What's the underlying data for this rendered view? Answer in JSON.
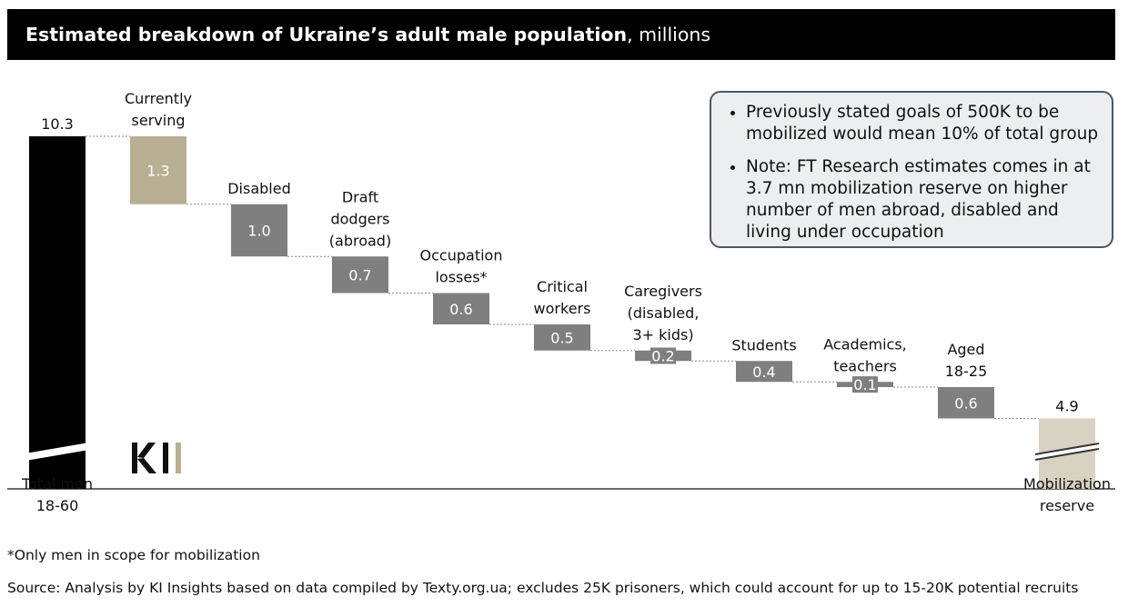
{
  "title": {
    "bold": "Estimated breakdown of Ukraine’s adult male population",
    "unit": ", millions"
  },
  "notes": [
    "Previously stated goals of 500K to be mobilized would mean 10% of total group",
    "Note: FT Research estimates comes in at 3.7 mn mobilization reserve on higher number of men abroad, disabled and living under occupation"
  ],
  "footnote": "*Only men in scope for mobilization",
  "source": "Source: Analysis by KI Insights based on data compiled by Texty.org.ua; excludes 25K prisoners, which could account for up to 15-20K potential recruits",
  "logo_text": "KI",
  "colors": {
    "total": "#000000",
    "serving": "#b8af94",
    "decrease": "#7f7f7f",
    "reserve": "#d8d2c2",
    "connector": "#888888"
  },
  "chart_data": {
    "type": "bar",
    "subtype": "waterfall",
    "title": "Estimated breakdown of Ukraine’s adult male population, millions",
    "unit": "millions",
    "total": {
      "label": [
        "Total men",
        "18-60"
      ],
      "value": 10.3,
      "value_label": "10.3",
      "axis_break": true
    },
    "steps": [
      {
        "label": [
          "Currently",
          "serving"
        ],
        "value": 1.3,
        "value_label": "1.3",
        "color": "#b8af94"
      },
      {
        "label": [
          "Disabled"
        ],
        "value": 1.0,
        "value_label": "1.0",
        "color": "#7f7f7f"
      },
      {
        "label": [
          "Draft",
          "dodgers",
          "(abroad)"
        ],
        "value": 0.7,
        "value_label": "0.7",
        "color": "#7f7f7f"
      },
      {
        "label": [
          "Occupation",
          "losses*"
        ],
        "value": 0.6,
        "value_label": "0.6",
        "color": "#7f7f7f"
      },
      {
        "label": [
          "Critical",
          "workers"
        ],
        "value": 0.5,
        "value_label": "0.5",
        "color": "#7f7f7f"
      },
      {
        "label": [
          "Caregivers",
          "(disabled,",
          "3+ kids)"
        ],
        "value": 0.2,
        "value_label": "0.2",
        "color": "#7f7f7f"
      },
      {
        "label": [
          "Students"
        ],
        "value": 0.4,
        "value_label": "0.4",
        "color": "#7f7f7f"
      },
      {
        "label": [
          "Academics,",
          "teachers"
        ],
        "value": 0.1,
        "value_label": "0.1",
        "color": "#7f7f7f"
      },
      {
        "label": [
          "Aged",
          "18-25"
        ],
        "value": 0.6,
        "value_label": "0.6",
        "color": "#7f7f7f"
      }
    ],
    "result": {
      "label": [
        "Mobilization",
        "reserve"
      ],
      "value": 4.9,
      "value_label": "4.9",
      "axis_break": true
    }
  }
}
